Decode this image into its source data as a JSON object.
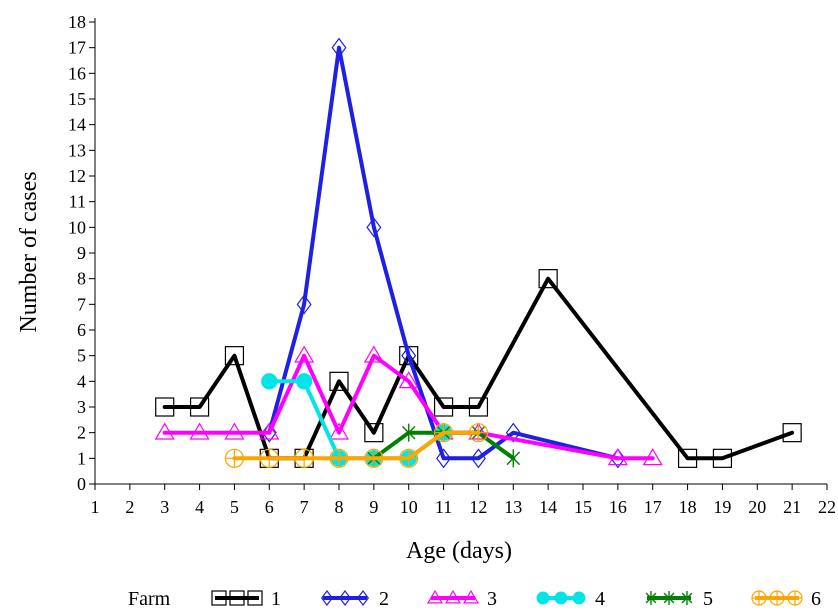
{
  "chart_data": {
    "type": "line",
    "xlabel": "Age (days)",
    "ylabel": "Number of cases",
    "xlim": [
      1,
      22
    ],
    "ylim": [
      0,
      18
    ],
    "xticks": [
      "1",
      "2",
      "3",
      "4",
      "5",
      "6",
      "7",
      "8",
      "9",
      "10",
      "11",
      "12",
      "13",
      "14",
      "15",
      "16",
      "17",
      "18",
      "19",
      "20",
      "21",
      "22"
    ],
    "yticks": [
      "0",
      "1",
      "2",
      "3",
      "4",
      "5",
      "6",
      "7",
      "8",
      "9",
      "10",
      "11",
      "12",
      "13",
      "14",
      "15",
      "16",
      "17",
      "18"
    ],
    "grid": false,
    "legend_title": "Farm",
    "legend_position": "bottom",
    "series": [
      {
        "name": "1",
        "color": "#000000",
        "marker": "square",
        "x": [
          3,
          4,
          5,
          6,
          7,
          8,
          9,
          10,
          11,
          12,
          14,
          18,
          19,
          21
        ],
        "y": [
          3,
          3,
          5,
          1,
          1,
          4,
          2,
          5,
          3,
          3,
          8,
          1,
          1,
          2
        ]
      },
      {
        "name": "2",
        "color": "#1f1fe6",
        "marker": "diamond",
        "x": [
          6,
          7,
          8,
          9,
          10,
          11,
          12,
          13,
          16
        ],
        "y": [
          2,
          7,
          17,
          10,
          5,
          1,
          1,
          2,
          1
        ]
      },
      {
        "name": "3",
        "color": "#ff00ff",
        "marker": "triangle",
        "x": [
          3,
          4,
          5,
          6,
          7,
          8,
          9,
          10,
          11,
          12,
          16,
          17
        ],
        "y": [
          2,
          2,
          2,
          2,
          5,
          2,
          5,
          4,
          2,
          2,
          1,
          1
        ]
      },
      {
        "name": "4",
        "color": "#00e5e5",
        "marker": "circle",
        "x": [
          6,
          7,
          8,
          9,
          10,
          11
        ],
        "y": [
          4,
          4,
          1,
          1,
          1,
          2
        ]
      },
      {
        "name": "5",
        "color": "#008000",
        "marker": "star",
        "x": [
          9,
          10,
          11,
          12,
          13
        ],
        "y": [
          1,
          2,
          2,
          2,
          1
        ]
      },
      {
        "name": "6",
        "color": "#ffa500",
        "marker": "circleplus",
        "x": [
          5,
          6,
          7,
          8,
          9,
          10,
          11,
          12
        ],
        "y": [
          1,
          1,
          1,
          1,
          1,
          1,
          2,
          2
        ]
      }
    ]
  }
}
